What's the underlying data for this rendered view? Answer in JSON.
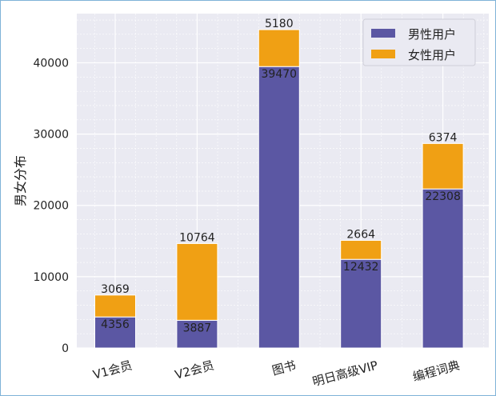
{
  "chart_data": {
    "type": "bar",
    "stacked": true,
    "categories": [
      "V1会员",
      "V2会员",
      "图书",
      "明日高级VIP",
      "编程词典"
    ],
    "series": [
      {
        "name": "男性用户",
        "color": "#5b57a3",
        "values": [
          4356,
          3887,
          39470,
          12432,
          22308
        ]
      },
      {
        "name": "女性用户",
        "color": "#f0a014",
        "values": [
          3069,
          10764,
          5180,
          2664,
          6374
        ]
      }
    ],
    "xlabel": "",
    "ylabel": "男女分布",
    "ylim": [
      0,
      46900
    ],
    "yticks": [
      0,
      10000,
      20000,
      30000,
      40000
    ],
    "grid": true,
    "legend_position": "top-right",
    "background_color": "#eaeaf2",
    "grid_color": "#ffffff"
  }
}
